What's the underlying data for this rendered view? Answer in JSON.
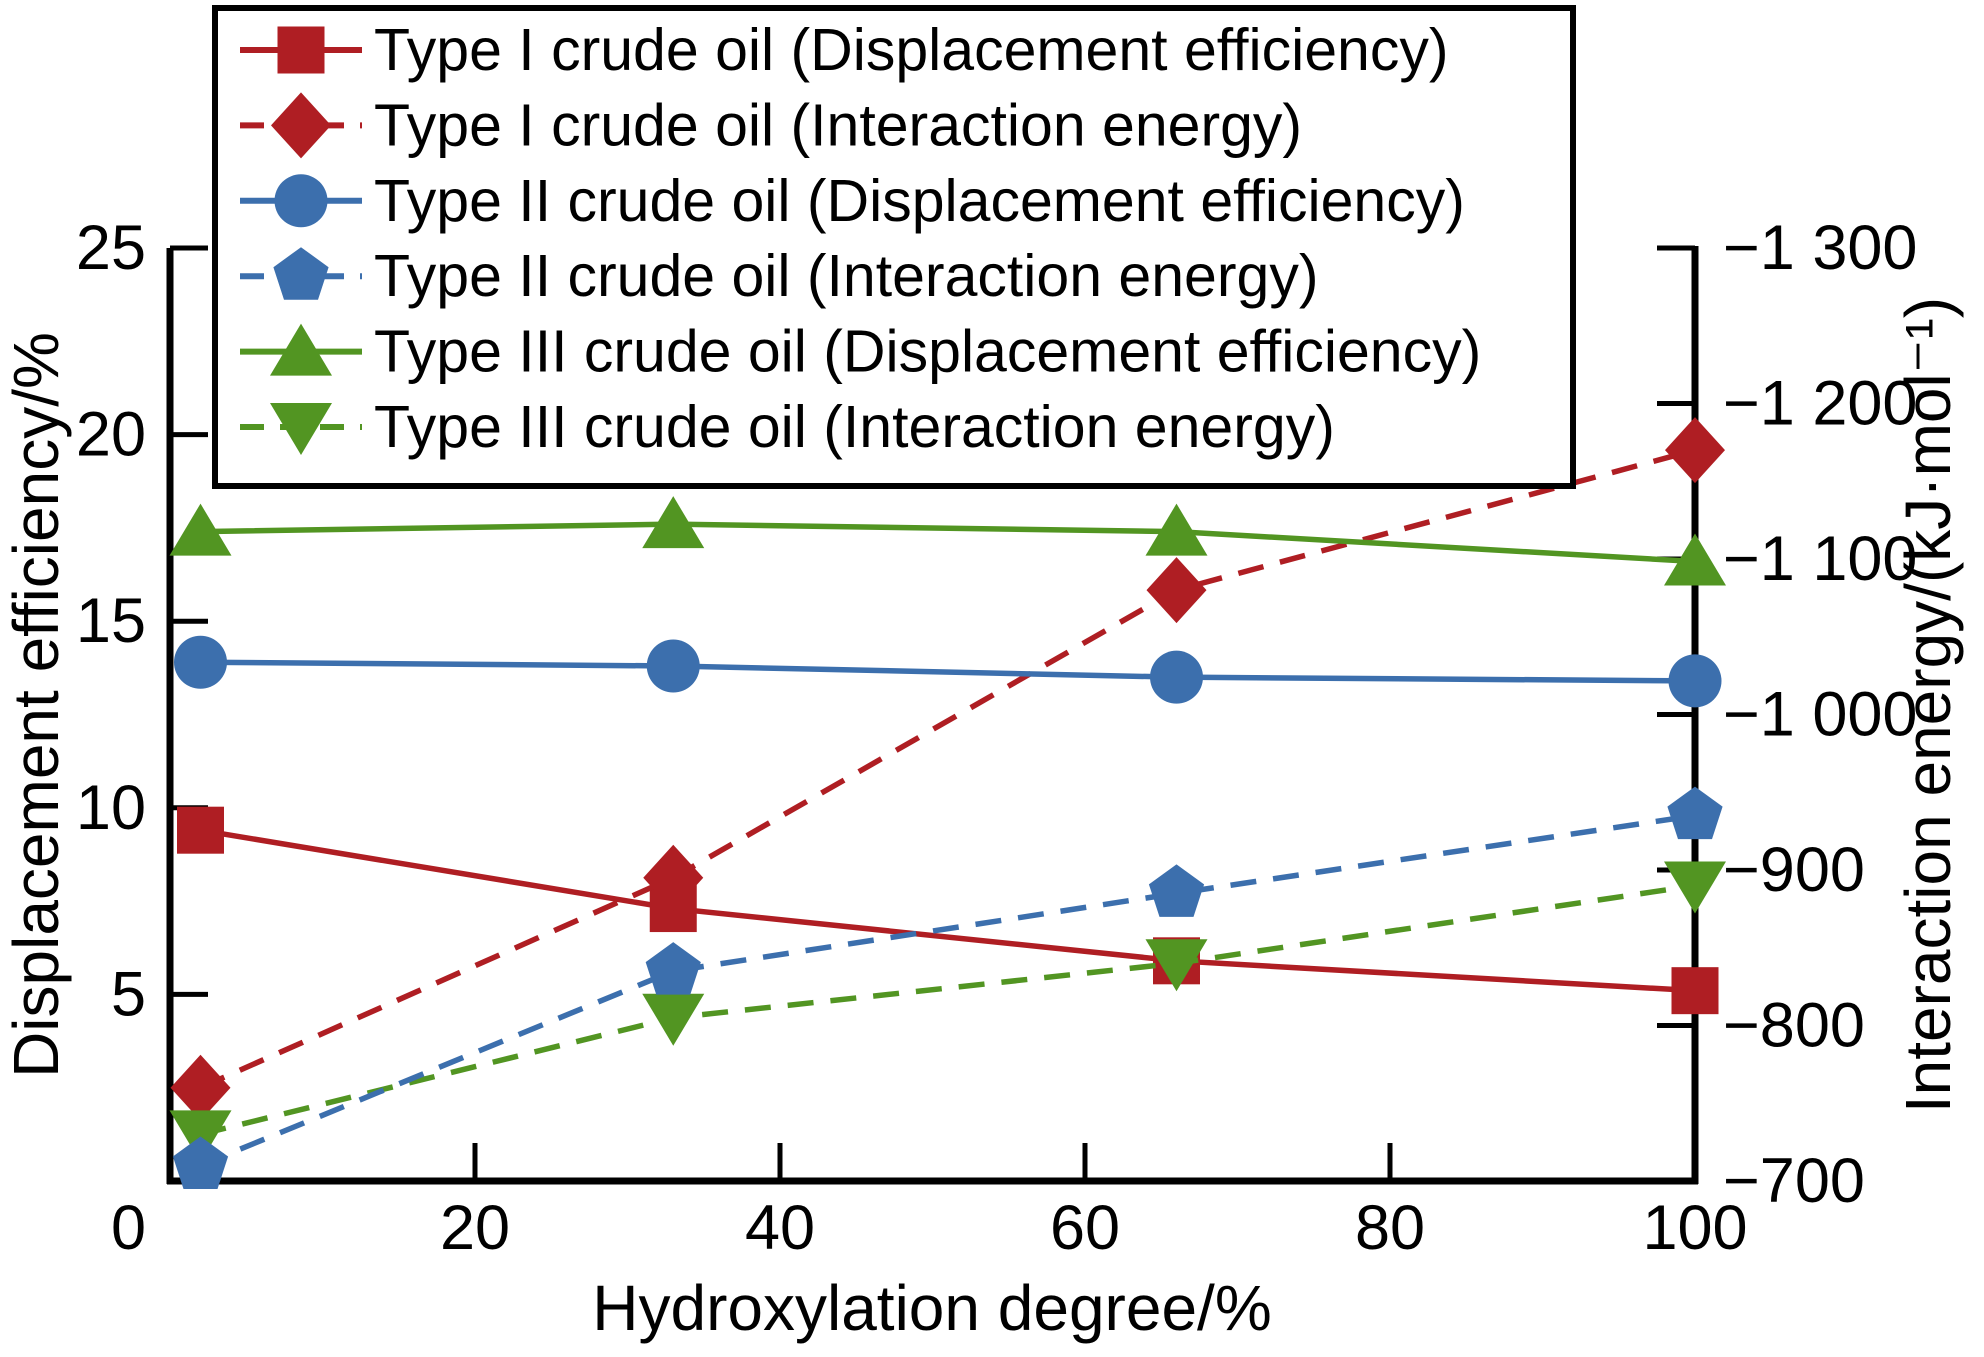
{
  "figure": {
    "xlabel": "Hydroxylation degree/%",
    "ylabel_left": "Displacement efficiency/%",
    "ylabel_right": "Interaction energy/(kJ·mol⁻¹)"
  },
  "chart_data": {
    "type": "line",
    "title": "",
    "xlabel": "Hydroxylation degree/%",
    "ylabel_left": "Displacement efficiency/%",
    "ylabel_right": "Interaction energy/(kJ·mol⁻¹)",
    "x": [
      2,
      33,
      66,
      100
    ],
    "x_axis": {
      "range": [
        0,
        100
      ],
      "tick_values": [
        0,
        20,
        40,
        60,
        80,
        100
      ],
      "tick_labels": [
        "0",
        "20",
        "40",
        "60",
        "80",
        "100"
      ]
    },
    "left_axis": {
      "range": [
        0,
        25
      ],
      "tick_values": [
        25,
        20,
        15,
        10,
        5
      ],
      "tick_labels": [
        "25",
        "20",
        "15",
        "10",
        "5"
      ]
    },
    "right_axis": {
      "range": [
        -1300,
        -700
      ],
      "tick_values": [
        -1300,
        -1200,
        -1100,
        -1000,
        -900,
        -800,
        -700
      ],
      "tick_labels": [
        "−1 300",
        "−1 200",
        "−1 100",
        "−1 000",
        "−900",
        "−800",
        "−700"
      ]
    },
    "grid": false,
    "legend_position": "top-left",
    "series": [
      {
        "name": "Type I crude oil (Displacement efficiency)",
        "axis": "left",
        "color": "#AF1E23",
        "line": "solid",
        "marker": "square",
        "values": [
          9.4,
          7.3,
          5.9,
          5.1
        ]
      },
      {
        "name": "Type I crude oil (Interaction energy)",
        "axis": "right",
        "color": "#AF1E23",
        "line": "dashed",
        "marker": "diamond",
        "values": [
          -760,
          -895,
          -1080,
          -1170
        ]
      },
      {
        "name": "Type II crude oil (Displacement efficiency)",
        "axis": "left",
        "color": "#3C6FAD",
        "line": "solid",
        "marker": "circle",
        "values": [
          13.9,
          13.8,
          13.5,
          13.4
        ]
      },
      {
        "name": "Type II crude oil (Interaction energy)",
        "axis": "right",
        "color": "#3C6FAD",
        "line": "dashed",
        "marker": "pentagon",
        "values": [
          -710,
          -835,
          -885,
          -935
        ]
      },
      {
        "name": "Type III crude oil (Displacement efficiency)",
        "axis": "left",
        "color": "#529522",
        "line": "solid",
        "marker": "triangle-up",
        "values": [
          17.4,
          17.6,
          17.4,
          16.6
        ]
      },
      {
        "name": "Type III crude oil (Interaction energy)",
        "axis": "right",
        "color": "#529522",
        "line": "dashed",
        "marker": "triangle-down",
        "values": [
          -730,
          -805,
          -840,
          -890
        ]
      }
    ]
  }
}
